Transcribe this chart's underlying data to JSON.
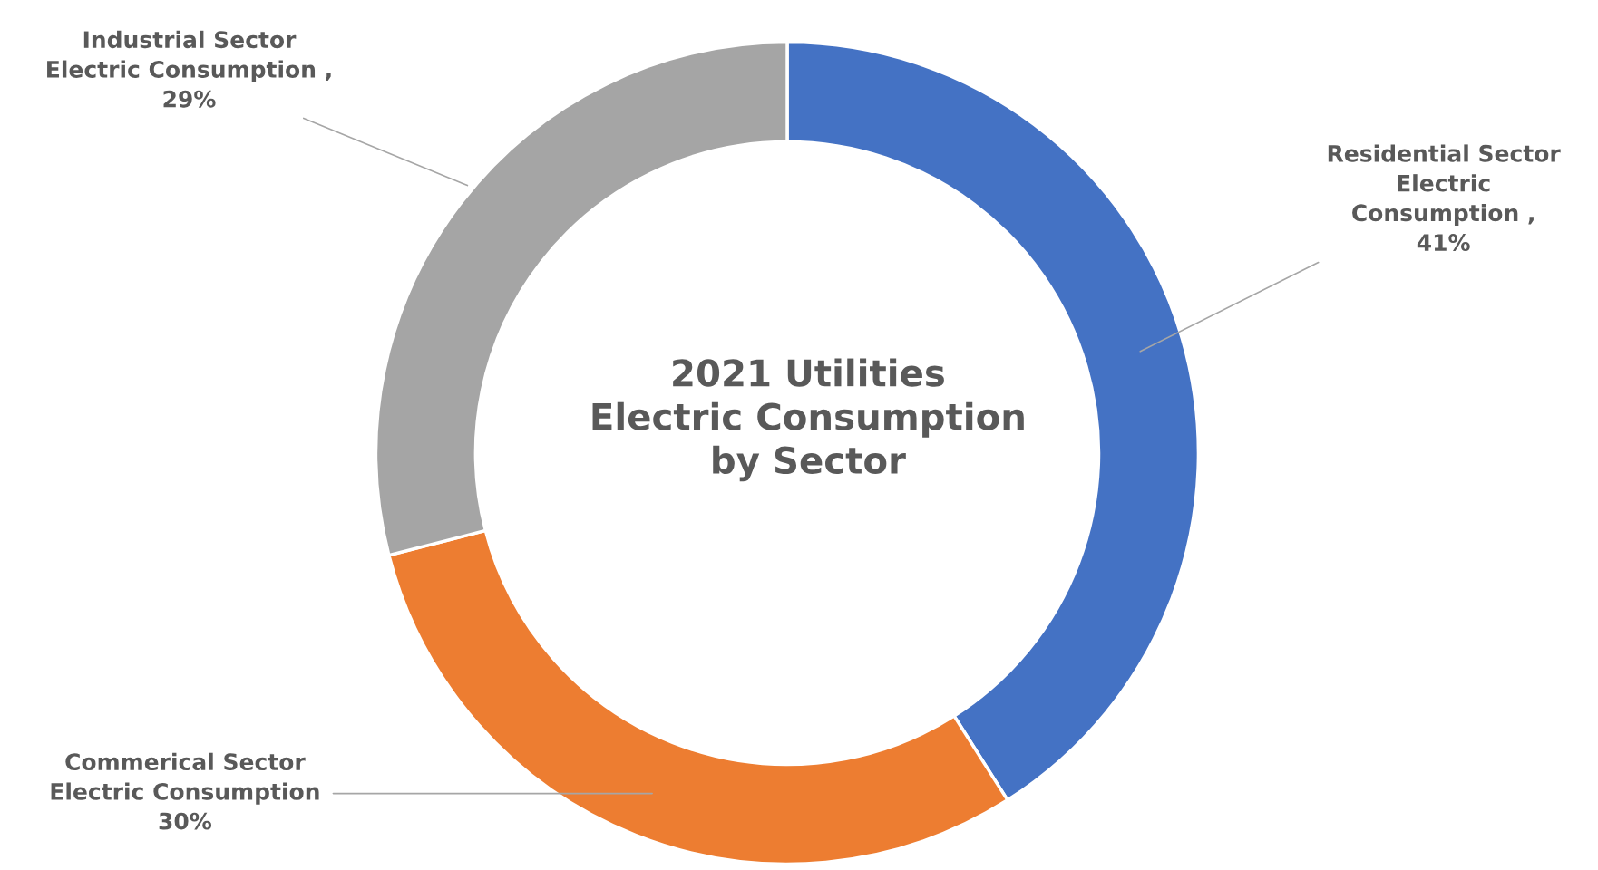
{
  "chart_data": {
    "type": "donut",
    "title": "2021 Utilities Electric Consumption by Sector",
    "categories": [
      "Residential Sector Electric Consumption",
      "Commerical Sector Electric Consumption",
      "Industrial Sector Electric Consumption"
    ],
    "values": [
      41,
      30,
      29
    ],
    "value_labels": [
      ", 41%",
      "30%",
      ", 29%"
    ],
    "colors": [
      "#4472c4",
      "#ed7d31",
      "#a5a5a5"
    ],
    "legend": false
  }
}
